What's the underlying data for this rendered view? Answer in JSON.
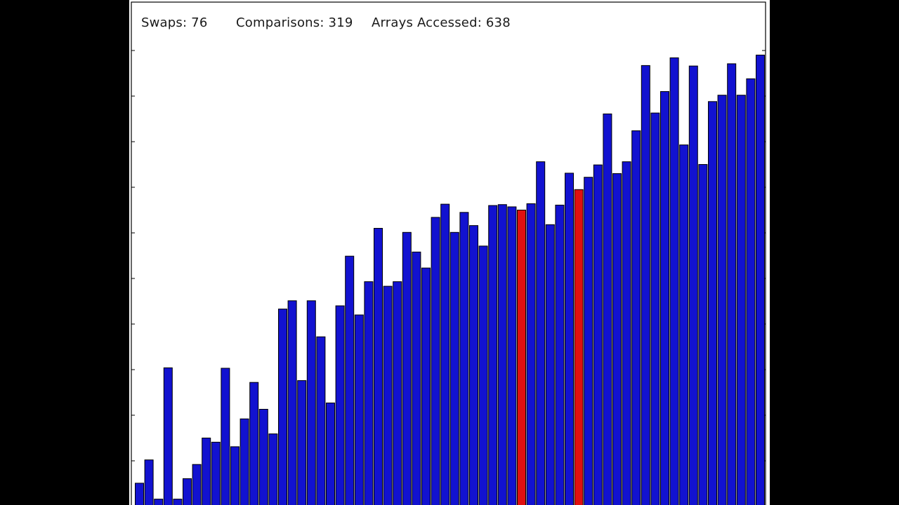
{
  "stats": {
    "swaps": "Swaps: 76",
    "comparisons": "Comparisons: 319",
    "arrays_accessed": "Arrays Accessed: 638"
  },
  "colors": {
    "bar": "#1212d0",
    "highlight": "#e01010",
    "background": "#ffffff",
    "frame": "#000000"
  },
  "chart_data": {
    "type": "bar",
    "title": "",
    "xlabel": "",
    "ylabel": "",
    "ylim": [
      0,
      100
    ],
    "grid": false,
    "highlighted_indices": [
      40,
      46
    ],
    "values": [
      5.1,
      10.2,
      1.6,
      30.4,
      1.6,
      6.1,
      9.2,
      15.0,
      14.1,
      30.3,
      13.1,
      19.2,
      27.2,
      21.3,
      15.9,
      43.3,
      45.1,
      27.6,
      45.1,
      37.2,
      22.7,
      44.0,
      54.9,
      42.0,
      49.3,
      61.0,
      48.3,
      49.3,
      60.1,
      55.8,
      52.3,
      63.4,
      66.3,
      60.1,
      64.5,
      61.6,
      57.1,
      66.0,
      66.2,
      65.7,
      65.0,
      66.4,
      75.6,
      61.8,
      66.1,
      73.1,
      69.5,
      72.2,
      74.9,
      86.1,
      73.0,
      75.6,
      82.4,
      96.7,
      86.3,
      91.0,
      98.4,
      79.3,
      96.6,
      75.0,
      88.8,
      90.2,
      97.1,
      90.2,
      93.8,
      99.0
    ]
  }
}
